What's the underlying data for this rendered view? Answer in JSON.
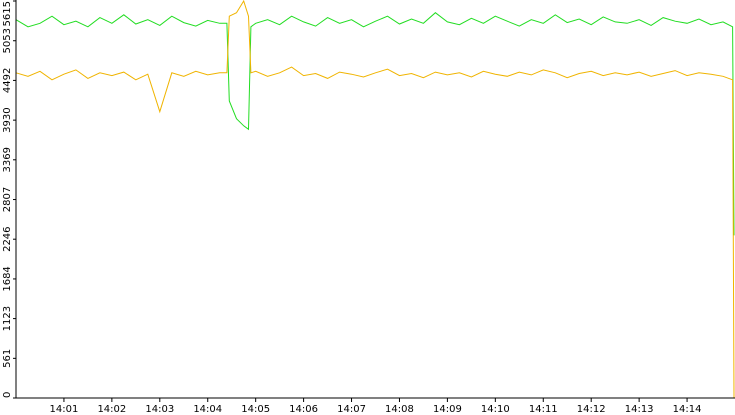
{
  "chart_data": {
    "type": "line",
    "x": [
      0,
      0.25,
      0.5,
      0.75,
      1,
      1.25,
      1.5,
      1.75,
      2,
      2.25,
      2.5,
      2.75,
      3,
      3.25,
      3.5,
      3.75,
      4,
      4.25,
      4.4,
      4.45,
      4.6,
      4.75,
      4.85,
      4.9,
      5,
      5.25,
      5.5,
      5.75,
      6,
      6.25,
      6.5,
      6.75,
      7,
      7.25,
      7.5,
      7.75,
      8,
      8.25,
      8.5,
      8.75,
      9,
      9.25,
      9.5,
      9.75,
      10,
      10.25,
      10.5,
      10.75,
      11,
      11.25,
      11.5,
      11.75,
      12,
      12.25,
      12.5,
      12.75,
      13,
      13.25,
      13.5,
      13.75,
      14,
      14.25,
      14.5,
      14.75,
      14.95,
      14.98
    ],
    "series": [
      {
        "color": "#22dd22",
        "values": [
          5350,
          5250,
          5300,
          5400,
          5280,
          5330,
          5250,
          5380,
          5300,
          5420,
          5290,
          5350,
          5270,
          5400,
          5310,
          5260,
          5340,
          5300,
          5300,
          4200,
          3950,
          3850,
          3800,
          5250,
          5300,
          5350,
          5280,
          5400,
          5320,
          5260,
          5380,
          5300,
          5350,
          5250,
          5330,
          5400,
          5290,
          5360,
          5300,
          5450,
          5320,
          5280,
          5370,
          5300,
          5400,
          5330,
          5260,
          5350,
          5300,
          5420,
          5310,
          5360,
          5280,
          5390,
          5320,
          5300,
          5350,
          5270,
          5380,
          5330,
          5300,
          5360,
          5280,
          5320,
          5250,
          2300
        ]
      },
      {
        "color": "#f0b400",
        "values": [
          4600,
          4550,
          4620,
          4500,
          4580,
          4640,
          4520,
          4600,
          4560,
          4610,
          4500,
          4580,
          4050,
          4600,
          4550,
          4620,
          4570,
          4600,
          4600,
          5400,
          5450,
          5615,
          5400,
          4600,
          4620,
          4550,
          4600,
          4680,
          4560,
          4590,
          4520,
          4610,
          4580,
          4540,
          4600,
          4650,
          4560,
          4590,
          4530,
          4610,
          4570,
          4600,
          4540,
          4620,
          4580,
          4550,
          4610,
          4570,
          4640,
          4600,
          4530,
          4590,
          4620,
          4560,
          4600,
          4570,
          4610,
          4550,
          4590,
          4630,
          4560,
          4600,
          4580,
          4550,
          4500,
          0
        ]
      }
    ],
    "xlim": [
      0,
      15
    ],
    "xticks": [
      {
        "value": 1,
        "label": "14:01"
      },
      {
        "value": 2,
        "label": "14:02"
      },
      {
        "value": 3,
        "label": "14:03"
      },
      {
        "value": 4,
        "label": "14:04"
      },
      {
        "value": 5,
        "label": "14:05"
      },
      {
        "value": 6,
        "label": "14:06"
      },
      {
        "value": 7,
        "label": "14:07"
      },
      {
        "value": 8,
        "label": "14:08"
      },
      {
        "value": 9,
        "label": "14:09"
      },
      {
        "value": 10,
        "label": "14:10"
      },
      {
        "value": 11,
        "label": "14:11"
      },
      {
        "value": 12,
        "label": "14:12"
      },
      {
        "value": 13,
        "label": "14:13"
      },
      {
        "value": 14,
        "label": "14:14"
      }
    ],
    "ylim": [
      0,
      5615
    ],
    "yticks": [
      0,
      561,
      1123,
      1684,
      2246,
      2807,
      3369,
      3930,
      4492,
      5053,
      5615
    ]
  }
}
